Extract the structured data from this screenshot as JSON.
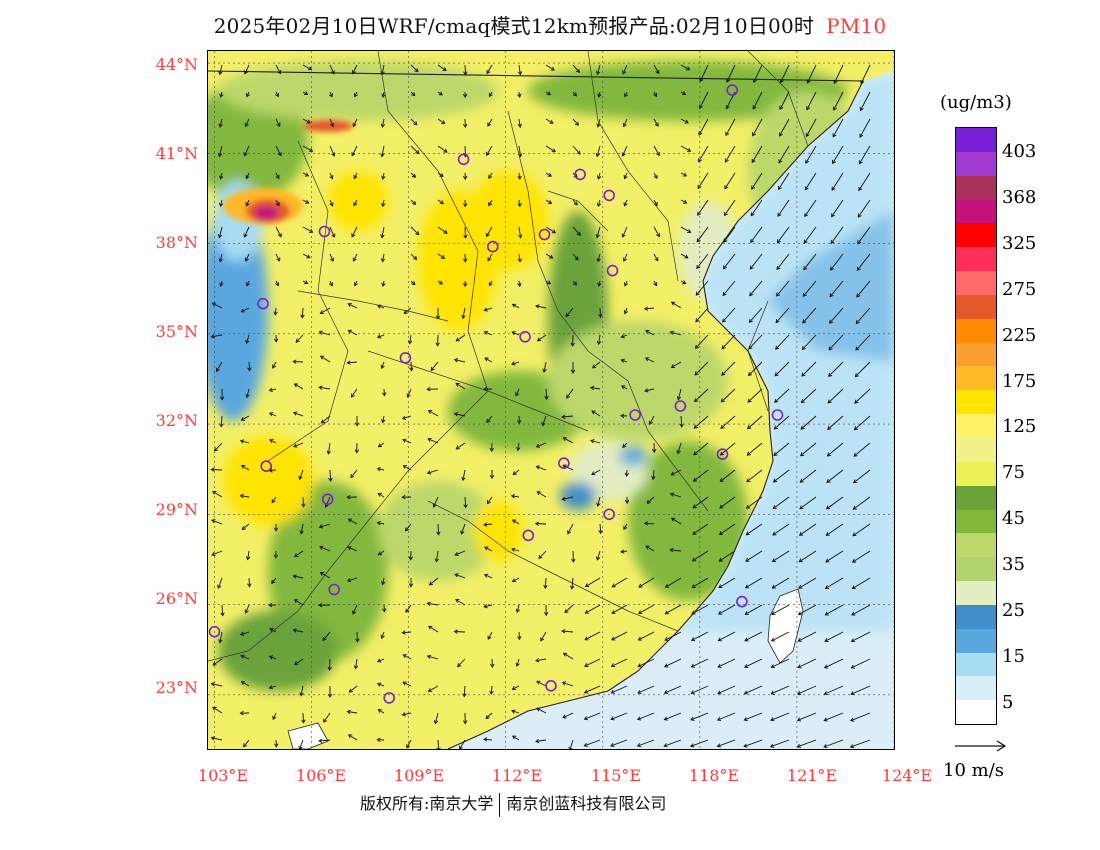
{
  "title": "2025年02月10日WRF/cmaq模式12km预报产品:02月10日00时",
  "pollutant": "PM10",
  "lat_labels": [
    "44°N",
    "41°N",
    "38°N",
    "35°N",
    "32°N",
    "29°N",
    "26°N",
    "23°N"
  ],
  "lon_labels": [
    "103°E",
    "106°E",
    "109°E",
    "112°E",
    "115°E",
    "118°E",
    "121°E",
    "124°E"
  ],
  "colorbar": {
    "units": "(ug/m3)",
    "labels": [
      "403",
      "368",
      "325",
      "275",
      "225",
      "175",
      "125",
      "75",
      "45",
      "35",
      "25",
      "15",
      "5"
    ],
    "colors": [
      "#7a1fd8",
      "#a23bd1",
      "#a8305a",
      "#c6127d",
      "#ff0000",
      "#ff2f5a",
      "#ff6a6a",
      "#e4582a",
      "#ff8c00",
      "#fba030",
      "#ffb826",
      "#ffe400",
      "#fff168",
      "#f3f08a",
      "#ecf054",
      "#6aa33a",
      "#82b83c",
      "#bcd86a",
      "#b2d26e",
      "#e2eec2",
      "#3f8ec9",
      "#5aa7df",
      "#a6ddf4",
      "#d6eff9",
      "#ffffff"
    ]
  },
  "wind_reference": {
    "label": "10 m/s"
  },
  "copyright": {
    "left": "版权所有:南京大学",
    "right": "南京创蓝科技有限公司"
  },
  "map_view": {
    "lon_range": [
      102.8,
      124
    ],
    "lat_range": [
      21.2,
      44.4
    ]
  },
  "map_colors": {
    "ocean": "#dbeef7",
    "land_base": "#f3ef66"
  },
  "stations": [
    {
      "lon": 119.0,
      "lat": 43.1
    },
    {
      "lon": 110.7,
      "lat": 40.8
    },
    {
      "lon": 114.3,
      "lat": 40.3
    },
    {
      "lon": 115.2,
      "lat": 39.6
    },
    {
      "lon": 106.4,
      "lat": 38.4
    },
    {
      "lon": 111.6,
      "lat": 37.9
    },
    {
      "lon": 113.2,
      "lat": 38.3
    },
    {
      "lon": 115.3,
      "lat": 37.1
    },
    {
      "lon": 104.5,
      "lat": 36.0
    },
    {
      "lon": 112.6,
      "lat": 34.9
    },
    {
      "lon": 108.9,
      "lat": 34.2
    },
    {
      "lon": 116.0,
      "lat": 32.3
    },
    {
      "lon": 117.4,
      "lat": 32.6
    },
    {
      "lon": 120.4,
      "lat": 32.3
    },
    {
      "lon": 104.6,
      "lat": 30.6
    },
    {
      "lon": 113.8,
      "lat": 30.7
    },
    {
      "lon": 118.7,
      "lat": 31.0
    },
    {
      "lon": 106.5,
      "lat": 29.5
    },
    {
      "lon": 115.2,
      "lat": 29.0
    },
    {
      "lon": 112.7,
      "lat": 28.3
    },
    {
      "lon": 106.7,
      "lat": 26.5
    },
    {
      "lon": 119.3,
      "lat": 26.1
    },
    {
      "lon": 103.0,
      "lat": 25.1
    },
    {
      "lon": 113.4,
      "lat": 23.3
    },
    {
      "lon": 108.4,
      "lat": 22.9
    }
  ]
}
